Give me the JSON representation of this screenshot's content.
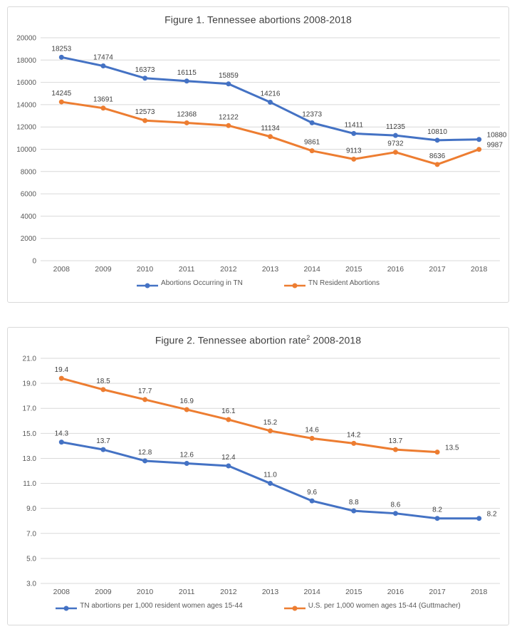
{
  "colors": {
    "series_blue": "#4472C4",
    "series_orange": "#ED7D31",
    "gridline": "#D9D9D9",
    "tick_text": "#595959",
    "label_text": "#404040"
  },
  "chart_data": [
    {
      "type": "line",
      "title": {
        "text_before": "Figure 1. Tennessee abortions 2008-2018",
        "superscript": "",
        "text_after": ""
      },
      "categories": [
        "2008",
        "2009",
        "2010",
        "2011",
        "2012",
        "2013",
        "2014",
        "2015",
        "2016",
        "2017",
        "2018"
      ],
      "ylim": [
        0,
        20000
      ],
      "yticks": {
        "values": [
          20000,
          18000,
          16000,
          14000,
          12000,
          10000,
          8000,
          6000,
          4000,
          2000,
          0
        ],
        "labels": [
          "20000",
          "18000",
          "16000",
          "14000",
          "12000",
          "10000",
          "8000",
          "6000",
          "4000",
          "2000",
          "0"
        ]
      },
      "grid": true,
      "legend_position": "bottom",
      "series": [
        {
          "name": "Abortions Occurring in TN",
          "color": "#4472C4",
          "values": [
            18253,
            17474,
            16373,
            16115,
            15859,
            14216,
            12373,
            11411,
            11235,
            10810,
            10880
          ],
          "labels": [
            "18253",
            "17474",
            "16373",
            "16115",
            "15859",
            "14216",
            "12373",
            "11411",
            "11235",
            "10810",
            "10880"
          ]
        },
        {
          "name": "TN Resident Abortions",
          "color": "#ED7D31",
          "values": [
            14245,
            13691,
            12573,
            12368,
            12122,
            11134,
            9861,
            9113,
            9732,
            8636,
            9987
          ],
          "labels": [
            "14245",
            "13691",
            "12573",
            "12368",
            "12122",
            "11134",
            "9861",
            "9113",
            "9732",
            "8636",
            "9987"
          ]
        }
      ]
    },
    {
      "type": "line",
      "title": {
        "text_before": "Figure 2. Tennessee abortion rate",
        "superscript": "2",
        "text_after": " 2008-2018"
      },
      "categories": [
        "2008",
        "2009",
        "2010",
        "2011",
        "2012",
        "2013",
        "2014",
        "2015",
        "2016",
        "2017",
        "2018"
      ],
      "ylim": [
        3,
        21
      ],
      "yticks": {
        "values": [
          21,
          19,
          17,
          15,
          13,
          11,
          9,
          7,
          5,
          3
        ],
        "labels": [
          "21.0",
          "19.0",
          "17.0",
          "15.0",
          "13.0",
          "11.0",
          "9.0",
          "7.0",
          "5.0",
          "3.0"
        ]
      },
      "grid": true,
      "legend_position": "bottom",
      "series": [
        {
          "name": "TN abortions per 1,000 resident women ages 15-44",
          "color": "#4472C4",
          "values": [
            14.3,
            13.7,
            12.8,
            12.6,
            12.4,
            11.0,
            9.6,
            8.8,
            8.6,
            8.2,
            8.2
          ],
          "labels": [
            "14.3",
            "13.7",
            "12.8",
            "12.6",
            "12.4",
            "11.0",
            "9.6",
            "8.8",
            "8.6",
            "8.2",
            "8.2"
          ]
        },
        {
          "name": "U.S. per 1,000 women ages 15-44 (Guttmacher)",
          "color": "#ED7D31",
          "values": [
            19.4,
            18.5,
            17.7,
            16.9,
            16.1,
            15.2,
            14.6,
            14.2,
            13.7,
            13.5,
            null
          ],
          "labels": [
            "19.4",
            "18.5",
            "17.7",
            "16.9",
            "16.1",
            "15.2",
            "14.6",
            "14.2",
            "13.7",
            "13.5",
            null
          ]
        }
      ]
    }
  ]
}
